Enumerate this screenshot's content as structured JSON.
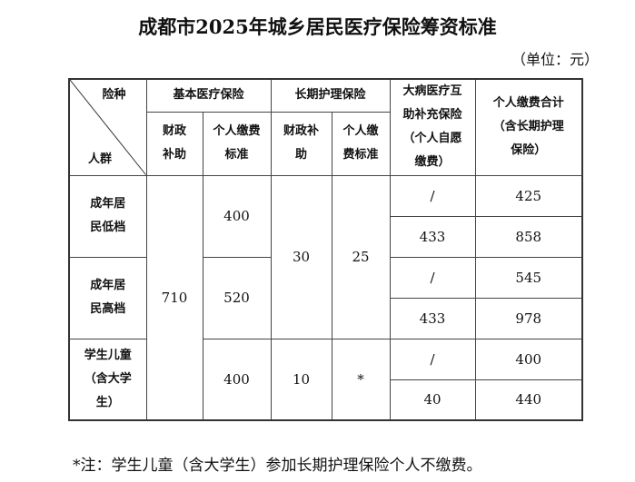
{
  "title": "成都市2025年城乡居民医疗保险筹资标准",
  "unit": "（单位：元）",
  "header": {
    "corner_top": "险种",
    "corner_bottom": "人群",
    "basic": "基本医疗保险",
    "long_term": "长期护理保险",
    "critical": "大病医疗互助补充保险（个人自愿缴费）",
    "total": "个人缴费合计（含长期护理保险）",
    "basic_subsidy": "财政补助",
    "basic_personal": "个人缴费标准",
    "lt_subsidy": "财政补助",
    "lt_personal": "个人缴费标准"
  },
  "rows": [
    {
      "group": "成年居民低档",
      "basic_personal": "400",
      "critical": [
        "/",
        "433"
      ],
      "total": [
        "425",
        "858"
      ]
    },
    {
      "group": "成年居民高档",
      "basic_personal": "520",
      "critical": [
        "/",
        "433"
      ],
      "total": [
        "545",
        "978"
      ]
    },
    {
      "group": "学生儿童（含大学生）",
      "basic_personal": "400",
      "lt_subsidy": "10",
      "lt_personal": "*",
      "critical": [
        "/",
        "40"
      ],
      "total": [
        "400",
        "440"
      ]
    }
  ],
  "adult_basic_subsidy": "710",
  "adult_lt_subsidy": "30",
  "adult_lt_personal": "25",
  "note": "*注：学生儿童（含大学生）参加长期护理保险个人不缴费。"
}
